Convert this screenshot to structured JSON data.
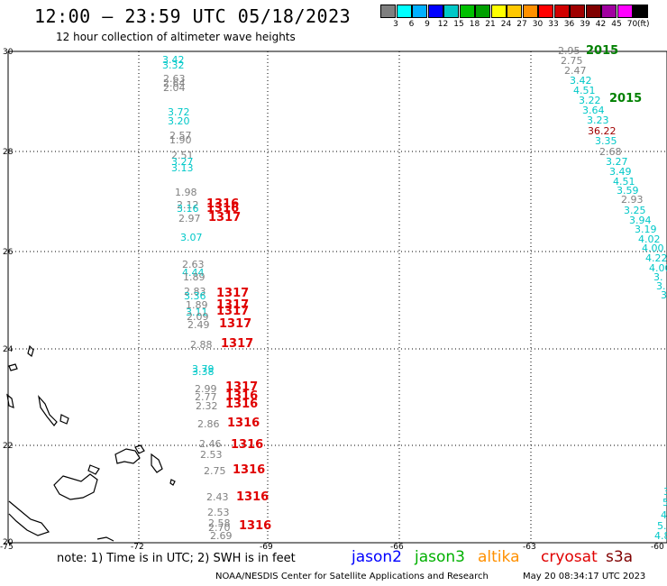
{
  "header": {
    "title": "12:00 — 23:59 UTC 05/18/2023",
    "subtitle": "12 hour collection of altimeter wave heights"
  },
  "colorbar": {
    "unit": "(ft)",
    "labels": [
      "3",
      "6",
      "9",
      "12",
      "15",
      "18",
      "21",
      "24",
      "27",
      "30",
      "33",
      "36",
      "39",
      "42",
      "45",
      "70"
    ],
    "colors": [
      "#7f7f7f",
      "#00ffff",
      "#00b0ff",
      "#0000ff",
      "#00c8c8",
      "#00c000",
      "#00a000",
      "#ffff00",
      "#ffc800",
      "#ff9000",
      "#ff0000",
      "#d00000",
      "#a00000",
      "#800000",
      "#a000a0",
      "#ff00ff",
      "#000000"
    ]
  },
  "map": {
    "lat_labels": [
      "30",
      "28",
      "26",
      "24",
      "22",
      "20"
    ],
    "lon_labels": [
      "-75",
      "-72",
      "-69",
      "-66",
      "-63",
      "-60"
    ],
    "grid": true,
    "readings_left": [
      {
        "v": "3.42",
        "c": "#00c8c8"
      },
      {
        "v": "3.32",
        "c": "#00c8c8"
      },
      {
        "v": "2.63",
        "c": "#808080"
      },
      {
        "v": "2.64",
        "c": "#808080"
      },
      {
        "v": "2.04",
        "c": "#808080"
      },
      {
        "v": "3.72",
        "c": "#00c8c8"
      },
      {
        "v": "3.20",
        "c": "#00c8c8"
      },
      {
        "v": "2.57",
        "c": "#808080"
      },
      {
        "v": "1.90",
        "c": "#808080"
      },
      {
        "v": "2.51",
        "c": "#808080"
      },
      {
        "v": "3.27",
        "c": "#00c8c8"
      },
      {
        "v": "3.13",
        "c": "#00c8c8"
      },
      {
        "v": "1.98",
        "c": "#808080"
      },
      {
        "v": "2.12",
        "c": "#808080"
      },
      {
        "v": "3.16",
        "c": "#00c8c8"
      },
      {
        "v": "2.97",
        "c": "#808080"
      },
      {
        "v": "3.07",
        "c": "#00c8c8"
      },
      {
        "v": "2.63",
        "c": "#808080"
      },
      {
        "v": "4.44",
        "c": "#00c8c8"
      },
      {
        "v": "1.89",
        "c": "#808080"
      },
      {
        "v": "2.83",
        "c": "#808080"
      },
      {
        "v": "3.36",
        "c": "#00c8c8"
      },
      {
        "v": "1.89",
        "c": "#808080"
      },
      {
        "v": "3.11",
        "c": "#00c8c8"
      },
      {
        "v": "2.09",
        "c": "#808080"
      },
      {
        "v": "2.49",
        "c": "#808080"
      },
      {
        "v": "2.88",
        "c": "#808080"
      },
      {
        "v": "3.79",
        "c": "#00c8c8"
      },
      {
        "v": "3.38",
        "c": "#00c8c8"
      },
      {
        "v": "2.99",
        "c": "#808080"
      },
      {
        "v": "2.77",
        "c": "#808080"
      },
      {
        "v": "2.32",
        "c": "#808080"
      },
      {
        "v": "2.86",
        "c": "#808080"
      },
      {
        "v": "2.46",
        "c": "#808080"
      },
      {
        "v": "2.53",
        "c": "#808080"
      },
      {
        "v": "2.75",
        "c": "#808080"
      },
      {
        "v": "2.43",
        "c": "#808080"
      },
      {
        "v": "2.53",
        "c": "#808080"
      },
      {
        "v": "2.58",
        "c": "#808080"
      },
      {
        "v": "2.70",
        "c": "#808080"
      },
      {
        "v": "2.69",
        "c": "#808080"
      }
    ],
    "readings_right": [
      {
        "v": "2.95",
        "c": "#808080"
      },
      {
        "v": "2.75",
        "c": "#808080"
      },
      {
        "v": "2.47",
        "c": "#808080"
      },
      {
        "v": "3.42",
        "c": "#00c8c8"
      },
      {
        "v": "4.51",
        "c": "#00c8c8"
      },
      {
        "v": "3.22",
        "c": "#00c8c8"
      },
      {
        "v": "3.64",
        "c": "#00c8c8"
      },
      {
        "v": "3.23",
        "c": "#00c8c8"
      },
      {
        "v": "36.22",
        "c": "#a00000"
      },
      {
        "v": "3.35",
        "c": "#00c8c8"
      },
      {
        "v": "2.68",
        "c": "#808080"
      },
      {
        "v": "3.27",
        "c": "#00c8c8"
      },
      {
        "v": "3.49",
        "c": "#00c8c8"
      },
      {
        "v": "4.51",
        "c": "#00c8c8"
      },
      {
        "v": "3.59",
        "c": "#00c8c8"
      },
      {
        "v": "2.93",
        "c": "#808080"
      },
      {
        "v": "3.25",
        "c": "#00c8c8"
      },
      {
        "v": "3.94",
        "c": "#00c8c8"
      },
      {
        "v": "3.19",
        "c": "#00c8c8"
      },
      {
        "v": "4.02",
        "c": "#00c8c8"
      },
      {
        "v": "4.00",
        "c": "#00c8c8"
      },
      {
        "v": "4.22",
        "c": "#00c8c8"
      },
      {
        "v": "4.00",
        "c": "#00c8c8"
      },
      {
        "v": "3.",
        "c": "#00c8c8"
      },
      {
        "v": "3.",
        "c": "#00c8c8"
      },
      {
        "v": "3",
        "c": "#00c8c8"
      },
      {
        "v": "3",
        "c": "#00c8c8"
      },
      {
        "v": "5",
        "c": "#00c8c8"
      },
      {
        "v": "4.",
        "c": "#00c8c8"
      },
      {
        "v": "5.",
        "c": "#00c8c8"
      },
      {
        "v": "4.8",
        "c": "#00c8c8"
      }
    ],
    "passes": [
      {
        "v": "2015",
        "c": "#008000"
      },
      {
        "v": "2015",
        "c": "#008000"
      },
      {
        "v": "1316",
        "c": "#e00000"
      },
      {
        "v": "1316",
        "c": "#e00000"
      },
      {
        "v": "1317",
        "c": "#e00000"
      },
      {
        "v": "1317",
        "c": "#e00000"
      },
      {
        "v": "1317",
        "c": "#e00000"
      },
      {
        "v": "1317",
        "c": "#e00000"
      },
      {
        "v": "1317",
        "c": "#e00000"
      },
      {
        "v": "1317",
        "c": "#e00000"
      },
      {
        "v": "1317",
        "c": "#e00000"
      },
      {
        "v": "1316",
        "c": "#e00000"
      },
      {
        "v": "1316",
        "c": "#e00000"
      },
      {
        "v": "1316",
        "c": "#e00000"
      },
      {
        "v": "1316",
        "c": "#e00000"
      },
      {
        "v": "1316",
        "c": "#e00000"
      },
      {
        "v": "1316",
        "c": "#e00000"
      },
      {
        "v": "1316",
        "c": "#e00000"
      }
    ]
  },
  "footer": {
    "note": "note: 1) Time is in UTC; 2) SWH is in feet",
    "satellites": [
      {
        "name": "jason2",
        "color": "#0000ff"
      },
      {
        "name": "jason3",
        "color": "#00b000"
      },
      {
        "name": "altika",
        "color": "#ff9000"
      },
      {
        "name": "cryosat",
        "color": "#e00000"
      },
      {
        "name": "s3a",
        "color": "#800000"
      }
    ],
    "credit": "NOAA/NESDIS Center for Satellite Applications and Research",
    "timestamp": "May 20 08:34:17 UTC 2023"
  }
}
